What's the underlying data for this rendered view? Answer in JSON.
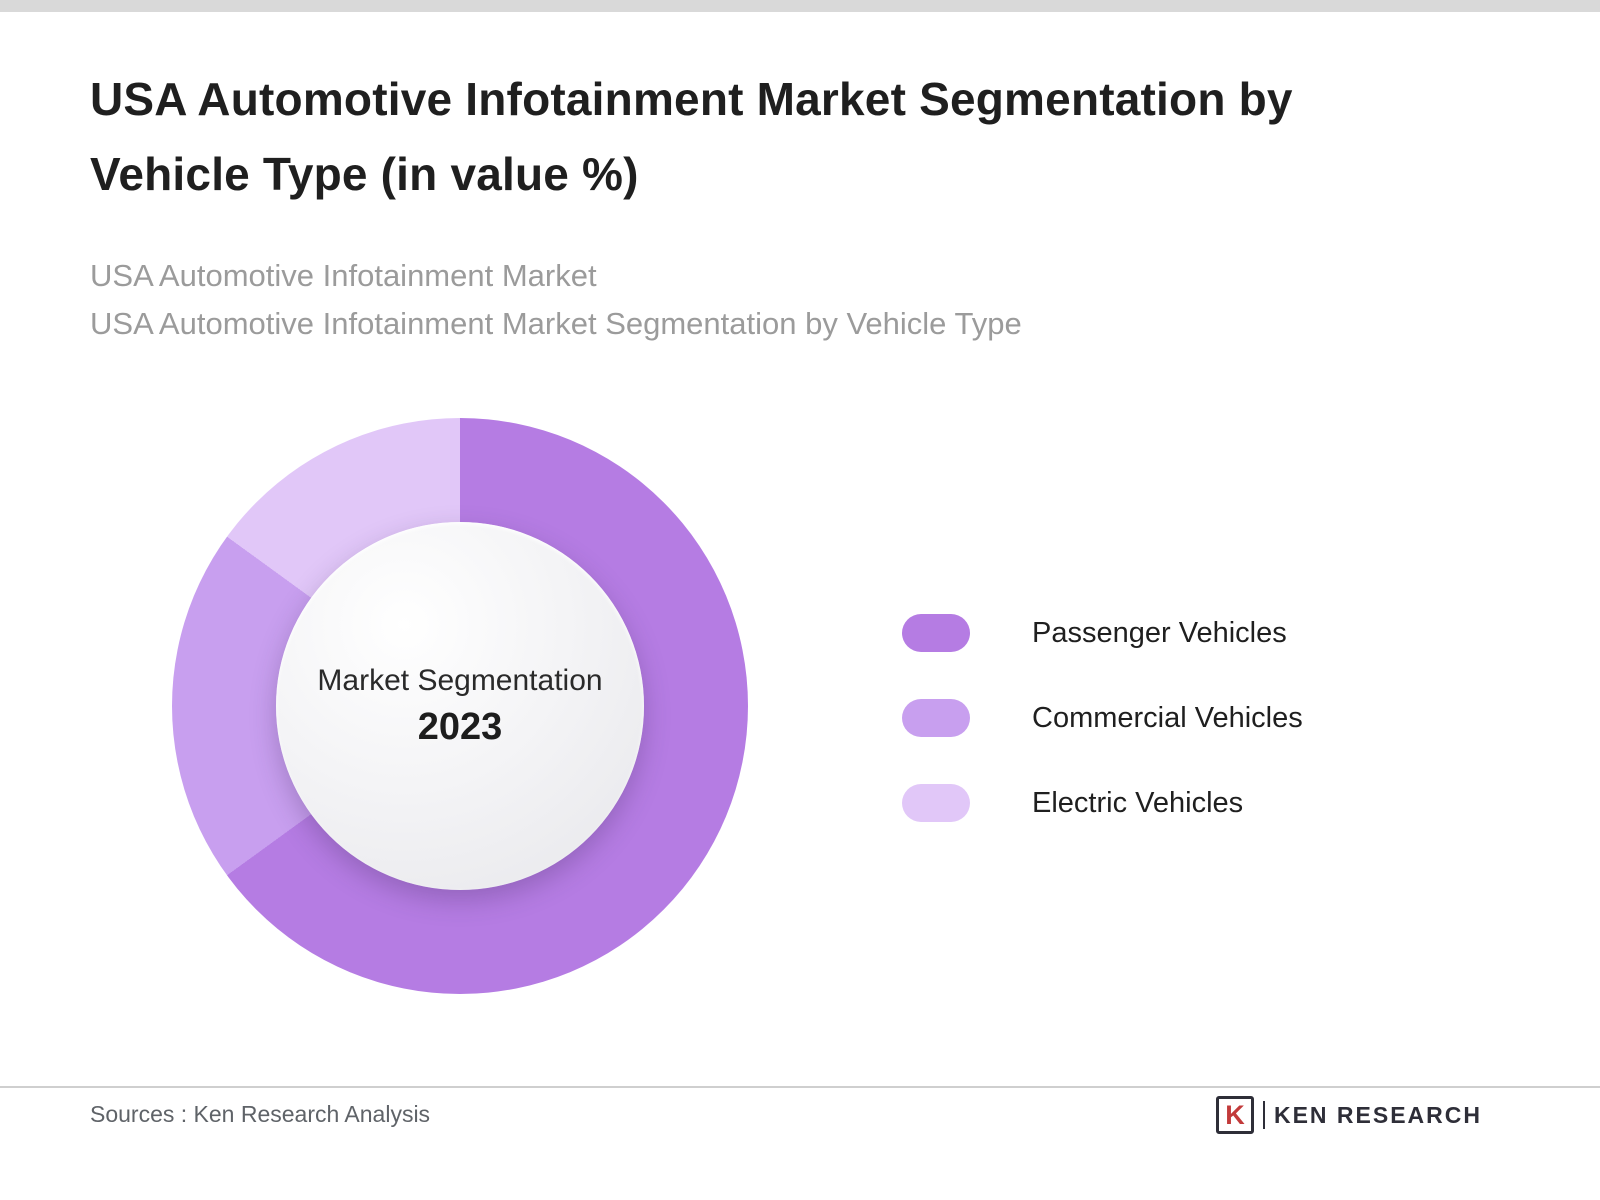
{
  "page": {
    "background": "#ffffff",
    "top_strip_color": "#d9d9d9"
  },
  "header": {
    "title": "USA Automotive Infotainment Market Segmentation by Vehicle Type (in value %)",
    "subtitle_line1": "USA Automotive Infotainment Market",
    "subtitle_line2": "USA Automotive Infotainment Market Segmentation by Vehicle Type"
  },
  "chart_data": {
    "type": "pie",
    "donut": true,
    "center_label": "Market Segmentation",
    "center_year": "2023",
    "categories": [
      "Passenger Vehicles",
      "Commercial Vehicles",
      "Electric Vehicles"
    ],
    "values": [
      65,
      20,
      15
    ],
    "unit": "value %",
    "colors": [
      "#b57ce3",
      "#c89fef",
      "#e1c7f8"
    ],
    "start_angle_deg": 0,
    "legend_position": "right"
  },
  "footer": {
    "source_text": "Sources : Ken Research Analysis",
    "logo_icon_letter": "K",
    "logo_text": "KEN RESEARCH"
  }
}
